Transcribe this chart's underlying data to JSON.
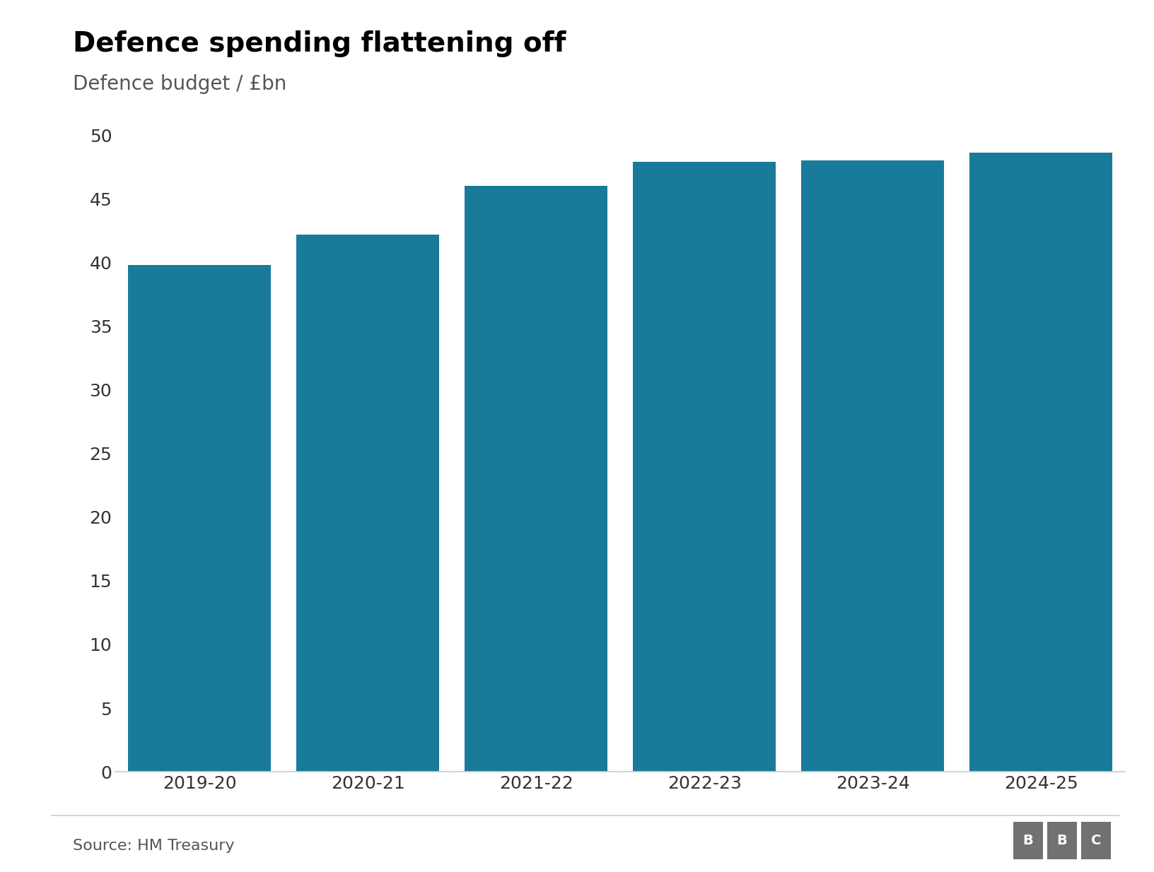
{
  "title": "Defence spending flattening off",
  "subtitle": "Defence budget / £bn",
  "source": "Source: HM Treasury",
  "categories": [
    "2019-20",
    "2020-21",
    "2021-22",
    "2022-23",
    "2023-24",
    "2024-25"
  ],
  "values": [
    39.8,
    42.2,
    46.0,
    47.9,
    48.0,
    48.6
  ],
  "bar_color": "#1a7a9a",
  "ylim": [
    0,
    50
  ],
  "yticks": [
    0,
    5,
    10,
    15,
    20,
    25,
    30,
    35,
    40,
    45,
    50
  ],
  "background_color": "#ffffff",
  "title_fontsize": 28,
  "subtitle_fontsize": 20,
  "tick_fontsize": 18,
  "source_fontsize": 16,
  "bar_width": 0.85,
  "spine_color": "#cccccc",
  "tick_color": "#333333",
  "bbc_box_color": "#717171"
}
